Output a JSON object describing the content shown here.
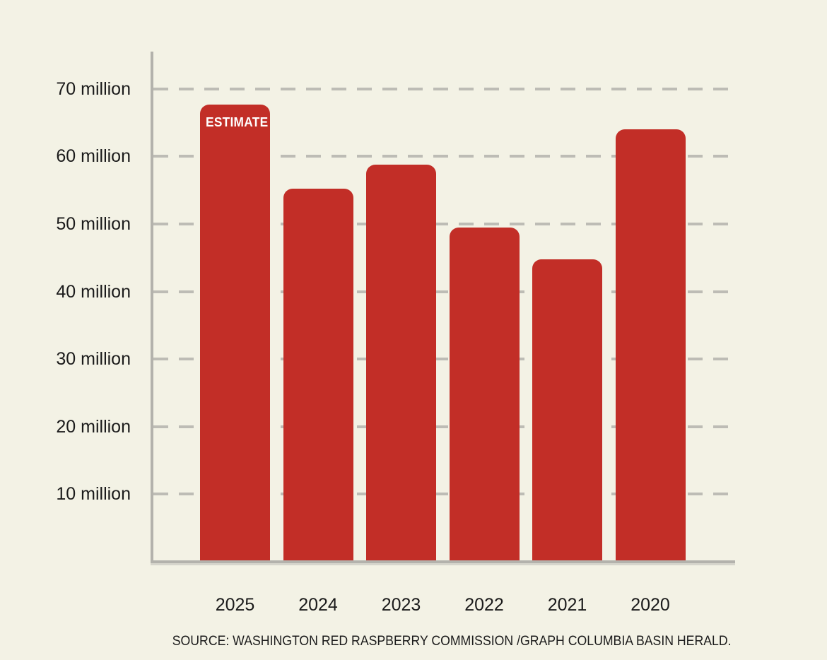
{
  "chart_data": {
    "type": "bar",
    "title": "",
    "xlabel": "",
    "ylabel": "",
    "categories": [
      "2025",
      "2024",
      "2023",
      "2022",
      "2021",
      "2020"
    ],
    "values": [
      67.7,
      55.2,
      58.8,
      49.5,
      44.8,
      64.0
    ],
    "unit": "million",
    "ylim": [
      0,
      75
    ],
    "yticks": [
      10,
      20,
      30,
      40,
      50,
      60,
      70
    ],
    "ytick_labels": [
      "10 million",
      "20 million",
      "30 million",
      "40 million",
      "50 million",
      "60 million",
      "70 million"
    ],
    "grid": "dashed-horizontal",
    "legend": "none",
    "annotations": [
      {
        "target": "2025",
        "label": "ESTIMATE"
      }
    ],
    "colors": {
      "bar": "#c22e27",
      "background": "#f3f2e5",
      "axis": "#b3b2ac",
      "gridline": "#bdbcb5",
      "text": "#1b1b1b",
      "annotation_text": "#ffffff"
    }
  },
  "source": {
    "text": "SOURCE: WASHINGTON RED RASPBERRY COMMISSION /GRAPH COLUMBIA BASIN HERALD."
  }
}
